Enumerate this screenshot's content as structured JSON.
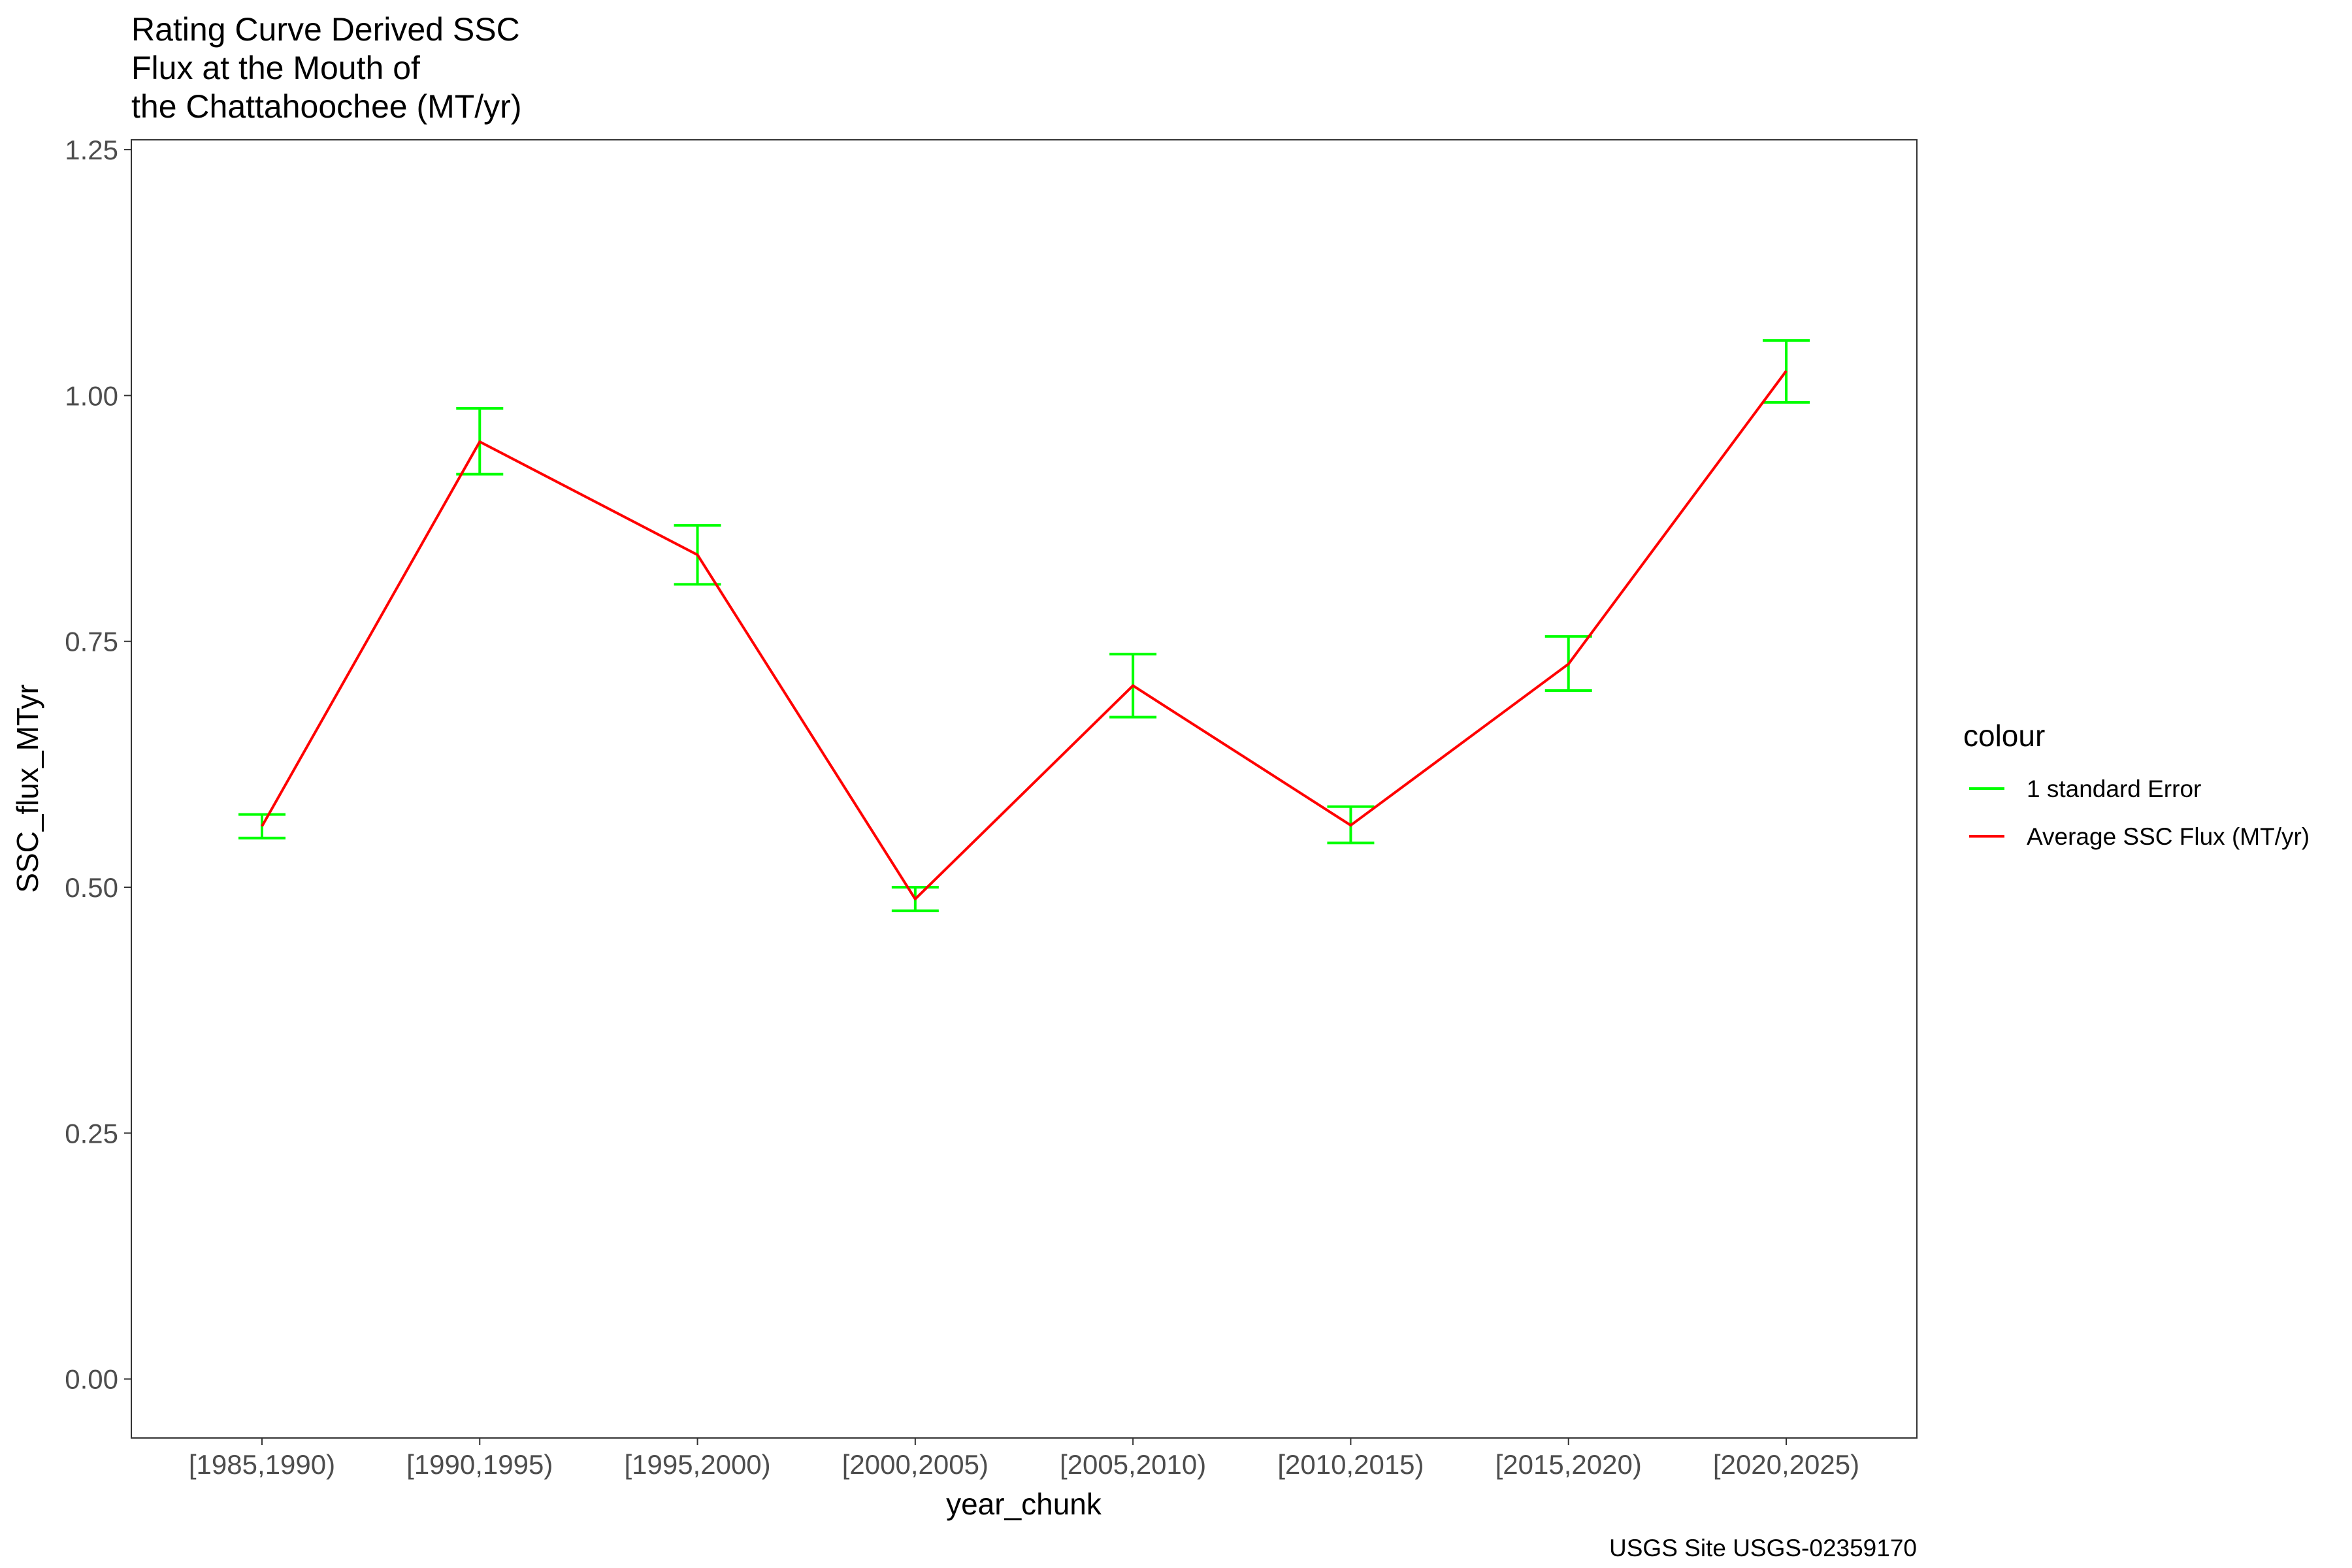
{
  "chart_data": {
    "type": "line",
    "title_lines": [
      "Rating Curve Derived SSC",
      "Flux at the Mouth of",
      "the Chattahoochee (MT/yr)"
    ],
    "xlabel": "year_chunk",
    "ylabel": "SSC_flux_MTyr",
    "caption": "USGS Site USGS-02359170",
    "categories": [
      "[1985,1990)",
      "[1990,1995)",
      "[1995,2000)",
      "[2000,2005)",
      "[2005,2010)",
      "[2010,2015)",
      "[2015,2020)",
      "[2020,2025)"
    ],
    "ylim": [
      -0.06,
      1.26
    ],
    "yticks": [
      0.0,
      0.25,
      0.5,
      0.75,
      1.0,
      1.25
    ],
    "ytick_labels": [
      "0.00",
      "0.25",
      "0.50",
      "0.75",
      "1.00",
      "1.25"
    ],
    "grid": false,
    "series": [
      {
        "name": "Average SSC Flux (MT/yr)",
        "kind": "line",
        "color": "#ff0000",
        "values": [
          0.562,
          0.953,
          0.838,
          0.488,
          0.705,
          0.563,
          0.727,
          1.025
        ]
      },
      {
        "name": "1 standard Error",
        "kind": "errorbar",
        "color": "#00ff00",
        "lower": [
          0.55,
          0.92,
          0.808,
          0.476,
          0.673,
          0.545,
          0.7,
          0.993
        ],
        "upper": [
          0.574,
          0.987,
          0.868,
          0.5,
          0.737,
          0.582,
          0.755,
          1.056
        ]
      }
    ],
    "legend": {
      "title": "colour",
      "placement": "right",
      "entries": [
        {
          "label": "1 standard Error",
          "color": "#00ff00"
        },
        {
          "label": "Average SSC Flux (MT/yr)",
          "color": "#ff0000"
        }
      ]
    }
  }
}
